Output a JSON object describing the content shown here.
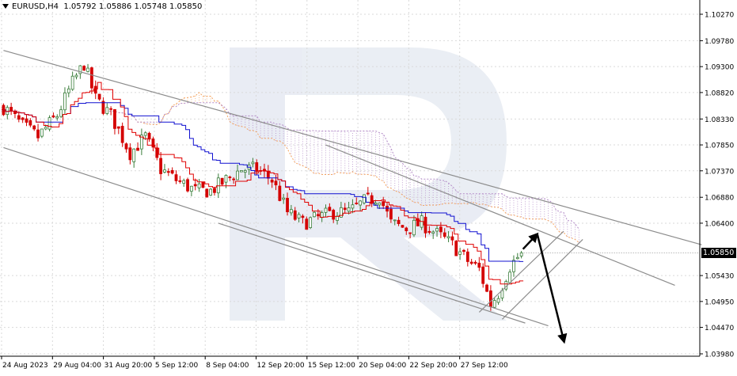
{
  "header": {
    "symbol": "EURUSD,H4",
    "open": "1.05792",
    "high": "1.05886",
    "low": "1.05748",
    "close": "1.05850"
  },
  "current_price_label": "1.05850",
  "colors": {
    "bull": "#3a7d3a",
    "bear": "#d40000",
    "tenkan": "#e00000",
    "kijun": "#1010d0",
    "cloud_a": "#f4a460",
    "cloud_b": "#b48cc8",
    "channel": "#8c8c8c",
    "grid": "#d9d9d9",
    "arrow": "#000000"
  },
  "chart_data": {
    "type": "candlestick",
    "y_ticks": [
      "1.10270",
      "1.09780",
      "1.09300",
      "1.08820",
      "1.08330",
      "1.07850",
      "1.07370",
      "1.06880",
      "1.06400",
      "1.05850",
      "1.05430",
      "1.04950",
      "1.04470",
      "1.03980"
    ],
    "y_tick_values": [
      1.1027,
      1.0978,
      1.093,
      1.0882,
      1.0833,
      1.0785,
      1.0737,
      1.0688,
      1.064,
      1.0585,
      1.0543,
      1.0495,
      1.0447,
      1.0398
    ],
    "ylim": [
      1.0398,
      1.1027
    ],
    "x_ticks": [
      "24 Aug 2023",
      "29 Aug 04:00",
      "31 Aug 20:00",
      "5 Sep 12:00",
      "8 Sep 04:00",
      "12 Sep 20:00",
      "15 Sep 12:00",
      "20 Sep 04:00",
      "22 Sep 20:00",
      "27 Sep 12:00"
    ],
    "close_path": [
      [
        0,
        1.0855
      ],
      [
        5,
        1.082
      ],
      [
        9,
        1.08
      ],
      [
        14,
        1.084
      ],
      [
        18,
        1.09
      ],
      [
        21,
        1.0935
      ],
      [
        24,
        1.087
      ],
      [
        28,
        1.084
      ],
      [
        33,
        1.077
      ],
      [
        37,
        1.08
      ],
      [
        41,
        1.074
      ],
      [
        45,
        1.072
      ],
      [
        50,
        1.07
      ],
      [
        54,
        1.07
      ],
      [
        58,
        1.072
      ],
      [
        62,
        1.074
      ],
      [
        66,
        1.074
      ],
      [
        70,
        1.072
      ],
      [
        74,
        1.066
      ],
      [
        78,
        1.064
      ],
      [
        82,
        1.065
      ],
      [
        86,
        1.066
      ],
      [
        90,
        1.066
      ],
      [
        94,
        1.068
      ],
      [
        98,
        1.069
      ],
      [
        101,
        1.064
      ],
      [
        105,
        1.063
      ],
      [
        109,
        1.064
      ],
      [
        113,
        1.062
      ],
      [
        117,
        1.06
      ],
      [
        121,
        1.057
      ],
      [
        124,
        1.0555
      ],
      [
        127,
        1.049
      ],
      [
        129,
        1.051
      ],
      [
        132,
        1.056
      ],
      [
        135,
        1.0585
      ]
    ],
    "indicators": [
      "Tenkan-sen",
      "Kijun-sen",
      "Ichimoku cloud"
    ],
    "channels": [
      {
        "name": "outer-upper",
        "from": [
          0,
          1.096
        ],
        "to": [
          182,
          1.06
        ]
      },
      {
        "name": "outer-lower",
        "from": [
          0,
          1.078
        ],
        "to": [
          142,
          1.045
        ]
      },
      {
        "name": "inner-upper",
        "from": [
          84,
          1.0785
        ],
        "to": [
          175,
          1.0525
        ]
      },
      {
        "name": "inner-lower",
        "from": [
          56,
          1.064
        ],
        "to": [
          136,
          1.0455
        ]
      }
    ],
    "forecast": {
      "rise_to": 1.062,
      "fall_to": 1.042
    }
  }
}
